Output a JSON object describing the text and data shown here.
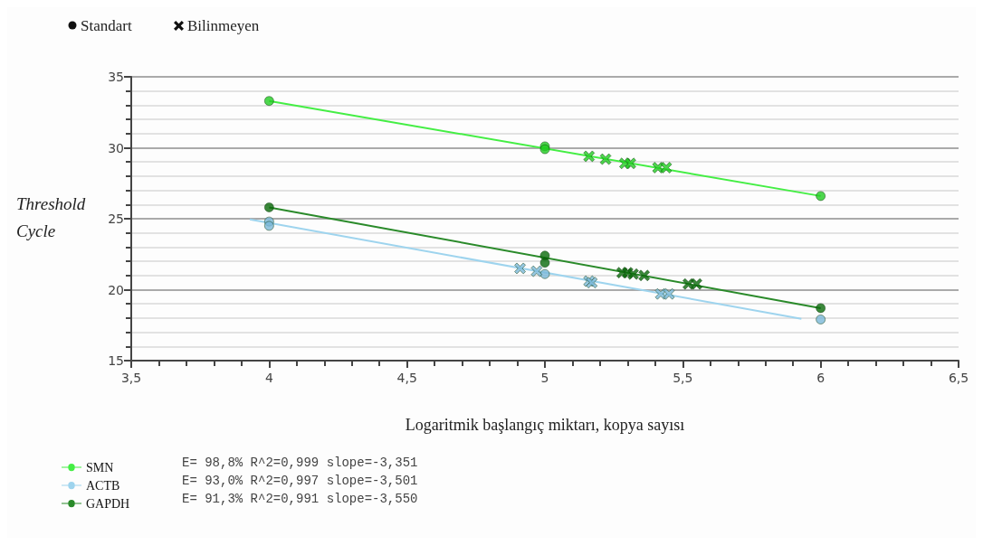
{
  "chart_data": {
    "type": "scatter",
    "xlabel": "Logaritmik başlangıç miktarı, kopya sayısı",
    "ylabel": "Threshold Cycle",
    "xlim": [
      3.5,
      6.5
    ],
    "ylim": [
      15,
      35
    ],
    "xticks": [
      {
        "value": 3.5,
        "label": "3,5"
      },
      4,
      {
        "value": 4.5,
        "label": "4,5"
      },
      5,
      {
        "value": 5.5,
        "label": "5,5"
      },
      6,
      {
        "value": 6.5,
        "label": "6,5"
      }
    ],
    "yticks": [
      15,
      20,
      25,
      30,
      35
    ],
    "grid": "y",
    "legend": "bottom left",
    "annotations": [
      "Standart",
      "Bilinmeyen",
      "E= 98,8% R^2=0,999 slope=-3,351",
      "E= 93,0% R^2=0,997 slope=-3,501",
      "E= 91,3% R^2=0,991 slope=-3,550"
    ],
    "series": [
      {
        "name": "SMN",
        "type": "line",
        "color": "#44ee44",
        "marker": "none",
        "x": [
          4,
          6
        ],
        "values": [
          33.3,
          26.6
        ]
      },
      {
        "name": "ACTB",
        "type": "line",
        "color": "#9ed4ee",
        "marker": "none",
        "x": [
          3.93,
          5.93
        ],
        "values": [
          24.95,
          17.95
        ]
      },
      {
        "name": "GAPDH",
        "type": "line",
        "color": "#2a8a2a",
        "marker": "none",
        "x": [
          4,
          6
        ],
        "values": [
          25.8,
          18.7
        ]
      },
      {
        "color": "#22cc22",
        "marker": "circle",
        "x": [
          4,
          5,
          5,
          6
        ],
        "values": [
          33.3,
          30.1,
          29.9,
          26.6
        ]
      },
      {
        "color": "#7ab8d8",
        "marker": "circle",
        "x": [
          4,
          4,
          5,
          6
        ],
        "values": [
          24.8,
          24.5,
          21.1,
          17.9
        ]
      },
      {
        "color": "#0a6a0a",
        "marker": "circle",
        "x": [
          4,
          5,
          5,
          6
        ],
        "values": [
          25.8,
          22.4,
          21.9,
          18.7
        ]
      },
      {
        "color": "#22cc22",
        "marker": "cross",
        "x": [
          5.16,
          5.22,
          5.29,
          5.31,
          5.41,
          5.44
        ],
        "values": [
          29.4,
          29.2,
          28.9,
          28.9,
          28.6,
          28.6
        ]
      },
      {
        "color": "#7ab8d8",
        "marker": "cross",
        "x": [
          4.91,
          4.97,
          5.16,
          5.17,
          5.42,
          5.45
        ],
        "values": [
          21.5,
          21.3,
          20.6,
          20.5,
          19.7,
          19.7
        ]
      },
      {
        "color": "#0a6a0a",
        "marker": "cross",
        "x": [
          5.28,
          5.3,
          5.32,
          5.36,
          5.52,
          5.55
        ],
        "values": [
          21.2,
          21.2,
          21.1,
          21.0,
          20.4,
          20.4
        ]
      }
    ]
  }
}
